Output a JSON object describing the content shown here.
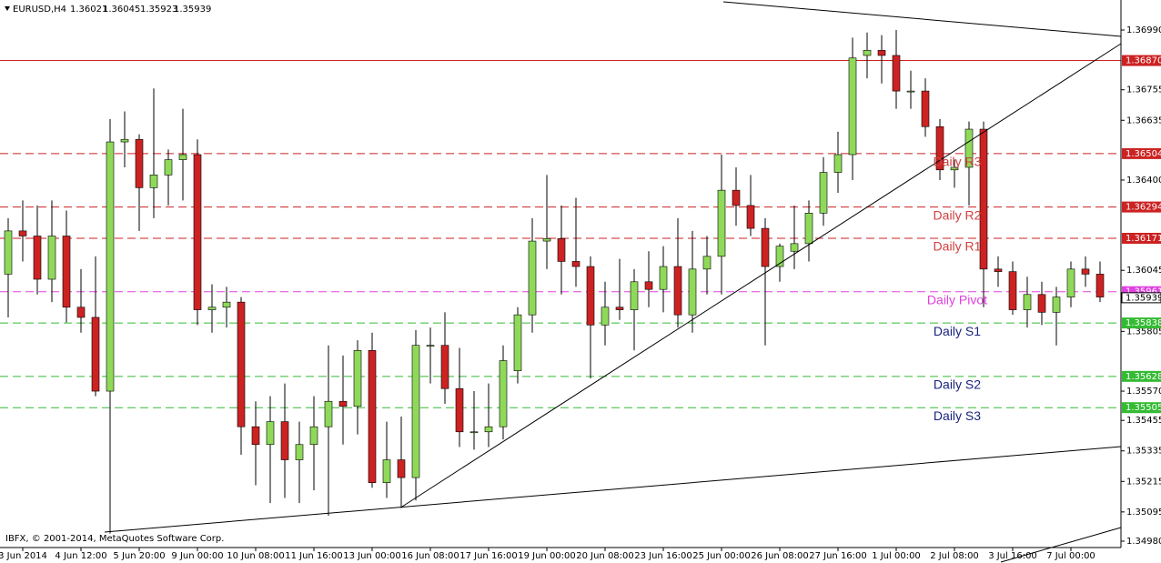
{
  "chart_data": {
    "type": "candlestick",
    "header": {
      "symbol": "EURUSD,H4",
      "ohlc": [
        1.36021,
        1.36045,
        1.35923,
        1.35939
      ]
    },
    "footer": "IBFX, © 2001-2014, MetaQuotes Software Corp.",
    "up_color": "#8fd95a",
    "down_color": "#cc2222",
    "categories": [
      null,
      "3 Jun 2014",
      null,
      null,
      null,
      "4 Jun 12:00",
      null,
      null,
      null,
      "5 Jun 20:00",
      null,
      null,
      null,
      "9 Jun 00:00",
      null,
      null,
      null,
      "10 Jun 08:00",
      null,
      null,
      null,
      "11 Jun 16:00",
      null,
      null,
      null,
      "13 Jun 00:00",
      null,
      null,
      null,
      "16 Jun 08:00",
      null,
      null,
      null,
      "17 Jun 16:00",
      null,
      null,
      null,
      "19 Jun 00:00",
      null,
      null,
      null,
      "20 Jun 08:00",
      null,
      null,
      null,
      "23 Jun 16:00",
      null,
      null,
      null,
      "25 Jun 00:00",
      null,
      null,
      null,
      "26 Jun 08:00",
      null,
      null,
      null,
      "27 Jun 16:00",
      null,
      null,
      null,
      "1 Jul 00:00",
      null,
      null,
      null,
      "2 Jul 08:00",
      null,
      null,
      null,
      "3 Jul 16:00",
      null,
      null,
      null,
      "7 Jul 00:00",
      null,
      null
    ],
    "open": [
      1.3603,
      1.362,
      1.3618,
      1.3601,
      1.3618,
      1.359,
      1.3586,
      1.3557,
      1.3655,
      1.3656,
      1.3637,
      1.3642,
      1.3648,
      1.365,
      1.3589,
      1.359,
      1.3592,
      1.3543,
      1.3536,
      1.3545,
      1.353,
      1.3536,
      1.3543,
      1.3553,
      1.3551,
      1.3573,
      1.3521,
      1.353,
      1.3523,
      1.3575,
      1.3575,
      1.3558,
      1.3541,
      1.3541,
      1.3543,
      1.3565,
      1.3587,
      1.3616,
      1.3617,
      1.3608,
      1.3606,
      1.3583,
      1.359,
      1.3589,
      1.36,
      1.3597,
      1.3606,
      1.3587,
      1.3605,
      1.361,
      1.3636,
      1.363,
      1.3621,
      1.3606,
      1.3612,
      1.3615,
      1.3627,
      1.3643,
      1.365,
      1.3689,
      1.3691,
      1.3689,
      1.3675,
      1.3675,
      1.3661,
      1.3644,
      1.3645,
      1.366,
      1.3605,
      1.3604,
      1.3589,
      1.3595,
      1.3588,
      1.3594,
      1.3605,
      1.3603
    ],
    "high": [
      1.3625,
      1.3632,
      1.363,
      1.3632,
      1.3628,
      1.3605,
      1.361,
      1.3664,
      1.3667,
      1.3658,
      1.3676,
      1.3652,
      1.3668,
      1.3656,
      1.3599,
      1.3598,
      1.3594,
      1.3553,
      1.3555,
      1.356,
      1.3545,
      1.3555,
      1.3575,
      1.3571,
      1.3577,
      1.358,
      1.3545,
      1.3547,
      1.3581,
      1.3582,
      1.3588,
      1.3574,
      1.3557,
      1.356,
      1.3575,
      1.359,
      1.3625,
      1.3642,
      1.363,
      1.3633,
      1.361,
      1.36,
      1.3609,
      1.3605,
      1.3612,
      1.3614,
      1.3625,
      1.362,
      1.3618,
      1.365,
      1.3645,
      1.3642,
      1.3625,
      1.3615,
      1.363,
      1.3632,
      1.3649,
      1.3659,
      1.3696,
      1.3698,
      1.3697,
      1.3699,
      1.3683,
      1.368,
      1.3664,
      1.3648,
      1.3663,
      1.3663,
      1.361,
      1.3608,
      1.3602,
      1.36,
      1.3598,
      1.3608,
      1.361,
      1.3608
    ],
    "low": [
      1.3586,
      1.3608,
      1.3595,
      1.3592,
      1.3584,
      1.358,
      1.3555,
      1.3501,
      1.3645,
      1.362,
      1.3625,
      1.363,
      1.3632,
      1.3583,
      1.358,
      1.3582,
      1.3532,
      1.352,
      1.3513,
      1.3515,
      1.3513,
      1.3518,
      1.3508,
      1.3536,
      1.354,
      1.3519,
      1.3515,
      1.3511,
      1.3514,
      1.356,
      1.3552,
      1.3535,
      1.3534,
      1.3535,
      1.3538,
      1.356,
      1.358,
      1.3605,
      1.3595,
      1.3598,
      1.3562,
      1.3575,
      1.3585,
      1.3573,
      1.359,
      1.3588,
      1.3582,
      1.358,
      1.3595,
      1.3595,
      1.3622,
      1.3618,
      1.3575,
      1.36,
      1.3605,
      1.3608,
      1.3622,
      1.3635,
      1.364,
      1.368,
      1.3678,
      1.3668,
      1.3668,
      1.3657,
      1.364,
      1.3637,
      1.363,
      1.359,
      1.3598,
      1.3587,
      1.3582,
      1.3583,
      1.3575,
      1.359,
      1.3598,
      1.3592
    ],
    "close": [
      1.362,
      1.3618,
      1.3601,
      1.3618,
      1.359,
      1.3586,
      1.3557,
      1.3655,
      1.3656,
      1.3637,
      1.3642,
      1.3648,
      1.365,
      1.3589,
      1.359,
      1.3592,
      1.3543,
      1.3536,
      1.3545,
      1.353,
      1.3536,
      1.3543,
      1.3553,
      1.3551,
      1.3573,
      1.3521,
      1.353,
      1.3523,
      1.3575,
      1.3575,
      1.3558,
      1.3541,
      1.3541,
      1.3543,
      1.3569,
      1.3587,
      1.3616,
      1.3617,
      1.3608,
      1.3606,
      1.3583,
      1.359,
      1.3589,
      1.36,
      1.3597,
      1.3606,
      1.3587,
      1.3605,
      1.361,
      1.3636,
      1.363,
      1.3621,
      1.3606,
      1.3614,
      1.3615,
      1.3627,
      1.3643,
      1.365,
      1.3688,
      1.3691,
      1.3689,
      1.3675,
      1.3675,
      1.3661,
      1.3644,
      1.3645,
      1.366,
      1.3605,
      1.3604,
      1.3589,
      1.3595,
      1.3588,
      1.3594,
      1.3605,
      1.3603,
      1.3594
    ],
    "ylim": [
      1.34955,
      1.37108
    ],
    "yticks": [
      {
        "value": 1.3699,
        "label": "1.36990"
      },
      {
        "value": 1.36755,
        "label": "1.36755"
      },
      {
        "value": 1.36635,
        "label": "1.36635"
      },
      {
        "value": 1.364,
        "label": "1.36400"
      },
      {
        "value": 1.36045,
        "label": "1.36045"
      },
      {
        "value": 1.35805,
        "label": "1.35805"
      },
      {
        "value": 1.3557,
        "label": "1.35570"
      },
      {
        "value": 1.35455,
        "label": "1.35455"
      },
      {
        "value": 1.35335,
        "label": "1.35335"
      },
      {
        "value": 1.35215,
        "label": "1.35215"
      },
      {
        "value": 1.35095,
        "label": "1.35095"
      },
      {
        "value": 1.3498,
        "label": "1.34980"
      }
    ],
    "levels": [
      {
        "value": 1.3687,
        "label": "1.36870",
        "color": "#cc2222",
        "text_color": "#cc2222",
        "dashed": false
      },
      {
        "name": "Daily R3",
        "value": 1.36504,
        "label": "1.36504",
        "color": "#cc2222",
        "text_color": "#d04040",
        "dashed": true
      },
      {
        "name": "Daily R2",
        "value": 1.36294,
        "label": "1.36294",
        "color": "#cc2222",
        "text_color": "#d04040",
        "dashed": true
      },
      {
        "name": "Daily R1",
        "value": 1.36171,
        "label": "1.36171",
        "color": "#cc2222",
        "text_color": "#d04040",
        "dashed": true
      },
      {
        "name": "Daily Pivot",
        "value": 1.35961,
        "label": "1.35961",
        "color": "#e040e0",
        "text_color": "#e040e0",
        "dashed": true
      },
      {
        "name": "Daily S1",
        "value": 1.35838,
        "label": "1.35838",
        "color": "#33bb33",
        "text_color": "#1a237e",
        "dashed": true
      },
      {
        "name": "Daily S2",
        "value": 1.35628,
        "label": "1.35628",
        "color": "#33bb33",
        "text_color": "#1a237e",
        "dashed": true
      },
      {
        "name": "Daily S3",
        "value": 1.35505,
        "label": "1.35505",
        "color": "#33bb33",
        "text_color": "#1a237e",
        "dashed": true
      }
    ],
    "current_price": {
      "value": 1.35939,
      "label": "1.35939"
    }
  }
}
